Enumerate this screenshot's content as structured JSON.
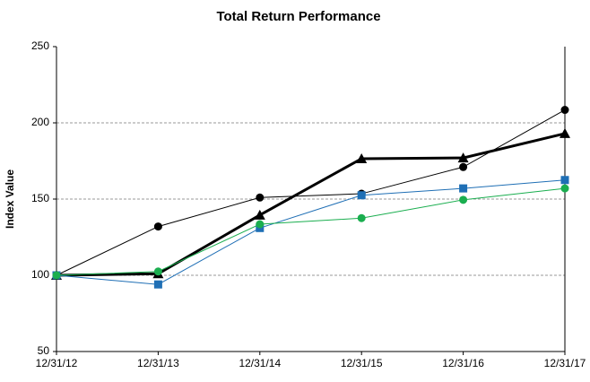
{
  "chart_data": {
    "type": "line",
    "title": "Total Return Performance",
    "y_label": "Index Value",
    "categories": [
      "12/31/12",
      "12/31/13",
      "12/31/14",
      "12/31/15",
      "12/31/16",
      "12/31/17"
    ],
    "series": [
      {
        "color": "#000000",
        "marker": "circle",
        "line_width": 1,
        "values": [
          100,
          132,
          151,
          153.5,
          171,
          208.5
        ]
      },
      {
        "color": "#000000",
        "marker": "triangle",
        "line_width": 3,
        "values": [
          100,
          101,
          139.5,
          176.5,
          177,
          193
        ]
      },
      {
        "color": "#1f6fb5",
        "marker": "square",
        "line_width": 1,
        "values": [
          100,
          94,
          131,
          152.5,
          157,
          162.5
        ]
      },
      {
        "color": "#1aae4f",
        "marker": "circle",
        "line_width": 1,
        "values": [
          100,
          102.5,
          133.5,
          137.5,
          149.5,
          157
        ]
      }
    ],
    "ylim": [
      50,
      250
    ],
    "yticks": [
      50,
      100,
      150,
      200,
      250
    ],
    "grid": true
  }
}
